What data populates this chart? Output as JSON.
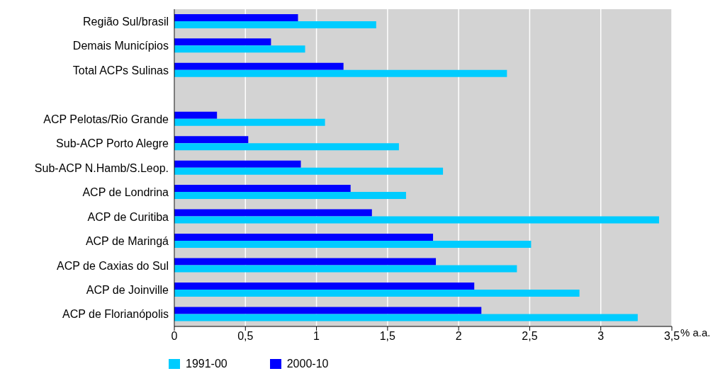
{
  "chart_data": {
    "type": "bar",
    "orientation": "horizontal",
    "xlabel": "% a.a.",
    "categories": [
      "Região Sul/brasil",
      "Demais Municípios",
      "Total ACPs Sulinas",
      null,
      "ACP Pelotas/Rio Grande",
      "Sub-ACP Porto Alegre",
      "Sub-ACP N.Hamb/S.Leop.",
      "ACP de Londrina",
      "ACP de Curitiba",
      "ACP de Maringá",
      "ACP de Caxias do Sul",
      "ACP de Joinville",
      "ACP de Florianópolis"
    ],
    "series": [
      {
        "name": "1991-00",
        "color": "#00ccff",
        "values": [
          1.42,
          0.92,
          2.34,
          null,
          1.06,
          1.58,
          1.89,
          1.63,
          3.41,
          2.51,
          2.41,
          2.85,
          3.26
        ]
      },
      {
        "name": "2000-10",
        "color": "#0000ff",
        "values": [
          0.87,
          0.68,
          1.19,
          null,
          0.3,
          0.52,
          0.89,
          1.24,
          1.39,
          1.82,
          1.84,
          2.11,
          2.16
        ]
      }
    ],
    "xlim": [
      0,
      3.5
    ],
    "xticks": [
      0,
      {
        "value": 0.5,
        "label": "0,5"
      },
      1,
      {
        "value": 1.5,
        "label": "1,5"
      },
      2,
      {
        "value": 2.5,
        "label": "2,5"
      },
      3,
      {
        "value": 3.5,
        "label": "3,5"
      }
    ],
    "grid": "x",
    "legend": "bottom left"
  }
}
